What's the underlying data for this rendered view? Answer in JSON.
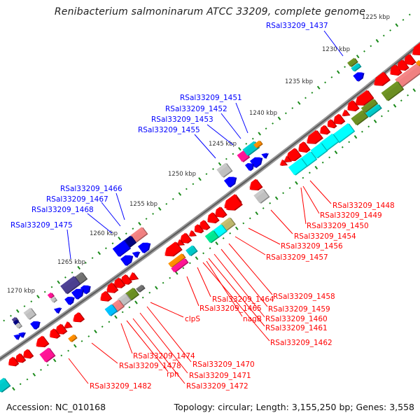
{
  "title": "Renibacterium salmoninarum ATCC 33209, complete genome",
  "footer": {
    "accession": "Accession: NC_010168",
    "topology": "Topology: circular; Length: 3,155,250 bp; Genes: 3,558"
  },
  "ticks": [
    "1225 kbp",
    "1230 kbp",
    "1235 kbp",
    "1240 kbp",
    "1245 kbp",
    "1250 kbp",
    "1255 kbp",
    "1260 kbp",
    "1265 kbp",
    "1270 kbp"
  ],
  "forward_labels": [
    "RSal33209_1437",
    "RSal33209_1451",
    "RSal33209_1452",
    "RSal33209_1453",
    "RSal33209_1455",
    "RSal33209_1466",
    "RSal33209_1467",
    "RSal33209_1468",
    "RSal33209_1475"
  ],
  "reverse_labels": [
    "RSal33209_1448",
    "RSal33209_1449",
    "RSal33209_1450",
    "RSal33209_1454",
    "RSal33209_1456",
    "RSal33209_1457",
    "RSal33209_1458",
    "RSal33209_1459",
    "RSal33209_1460",
    "RSal33209_1461",
    "RSal33209_1462",
    "RSal33209_1464",
    "RSal33209_1465",
    "nagB",
    "clpS",
    "RSal33209_1474",
    "RSal33209_1478",
    "rph",
    "RSal33209_1470",
    "RSal33209_1471",
    "RSal33209_1472",
    "RSal33209_1482"
  ],
  "colors": {
    "forward_label": "#0000ff",
    "reverse_label": "#ff0000",
    "backbone": "#808080",
    "tick": "#1a8a1a"
  }
}
